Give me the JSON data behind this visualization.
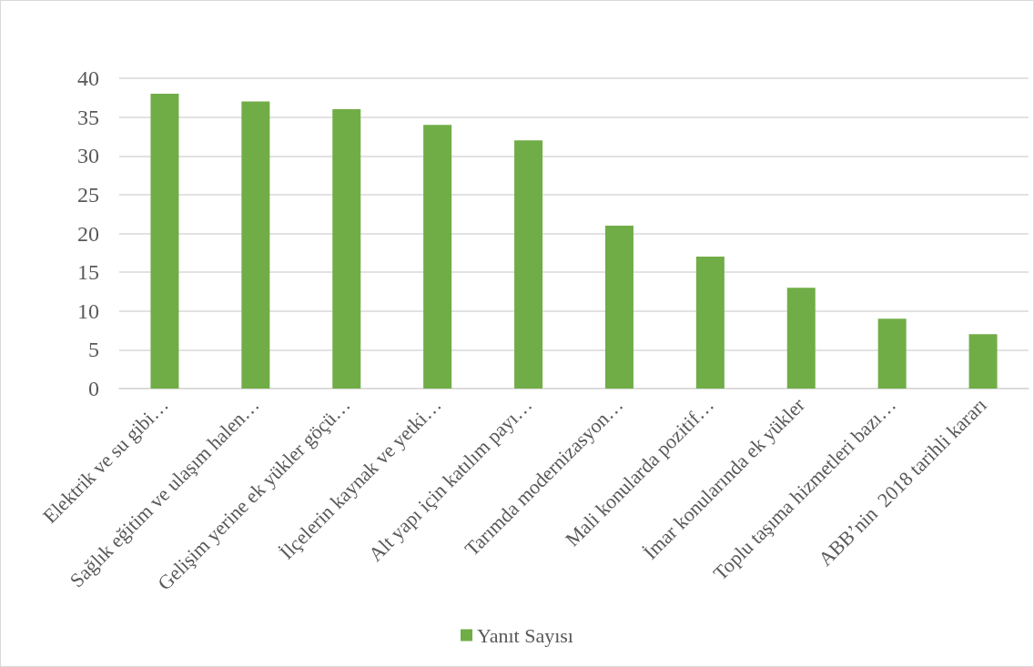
{
  "chart_data": {
    "type": "bar",
    "categories": [
      "Elektrik ve su gibi…",
      "Sağlık eğitim ve ulaşım halen…",
      "Gelişim yerine ek yükler göçü…",
      "İlçelerin kaynak ve yetki…",
      "Alt yapı için katılım payı…",
      "Tarımda modernizasyon…",
      "Mali konularda pozitif…",
      "İmar konularında ek yükler",
      "Toplu taşıma hizmetleri bazı…",
      "ABB’nin  2018 tarihli kararı"
    ],
    "series": [
      {
        "name": "Yanıt Sayısı",
        "color": "#70ad47",
        "values": [
          38,
          37,
          36,
          34,
          32,
          21,
          17,
          13,
          9,
          7
        ]
      }
    ],
    "ylim": [
      0,
      40
    ],
    "yticks": [
      0,
      5,
      10,
      15,
      20,
      25,
      30,
      35,
      40
    ],
    "grid": "y",
    "legend": "bottom"
  }
}
